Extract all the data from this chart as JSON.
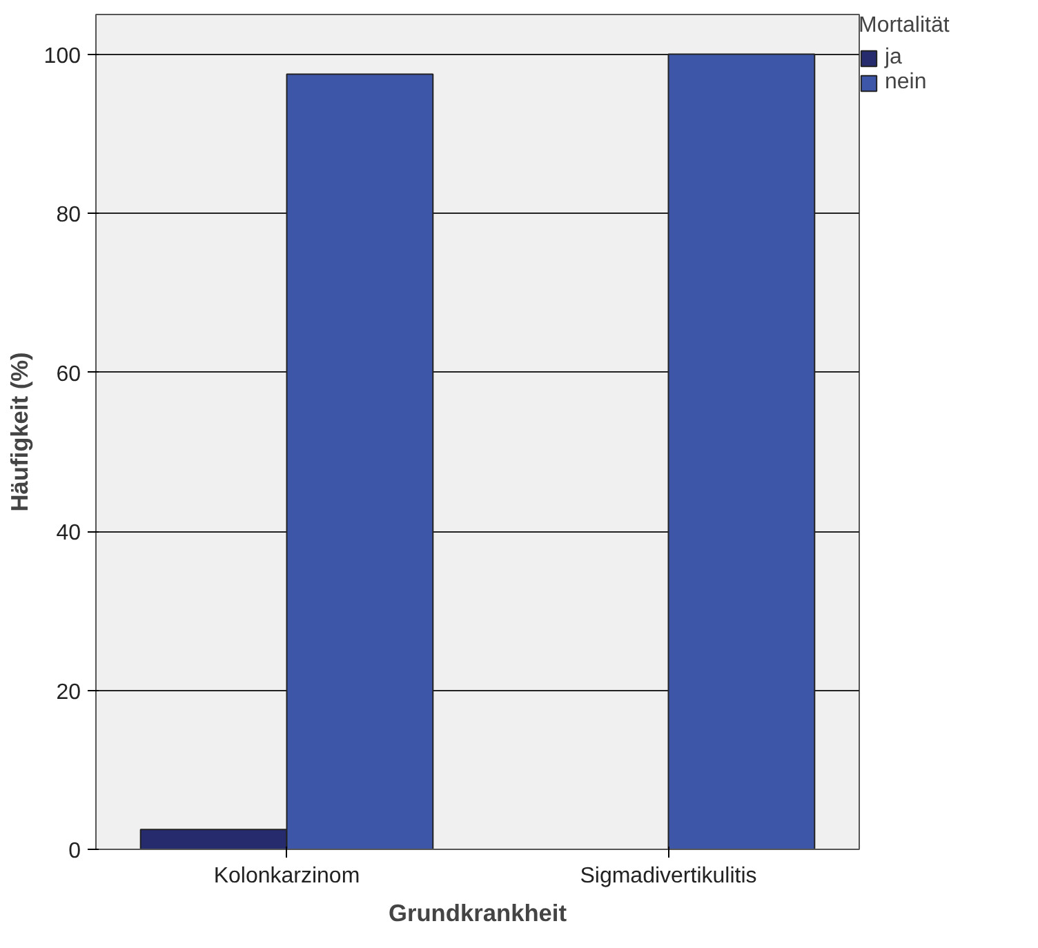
{
  "chart_data": {
    "type": "bar",
    "xlabel": "Grundkrankheit",
    "ylabel": "Häufigkeit (%)",
    "legend_title": "Mortalität",
    "categories": [
      "Kolonkarzinom",
      "Sigmadivertikulitis"
    ],
    "series": [
      {
        "name": "ja",
        "color": "#262b6e",
        "values": [
          2.5,
          0
        ]
      },
      {
        "name": "nein",
        "color": "#3d56a8",
        "values": [
          97.5,
          100
        ]
      }
    ],
    "ylim": [
      0,
      105
    ],
    "yticks": [
      0,
      20,
      40,
      60,
      80,
      100
    ],
    "grid": "y",
    "legend": "top right"
  }
}
